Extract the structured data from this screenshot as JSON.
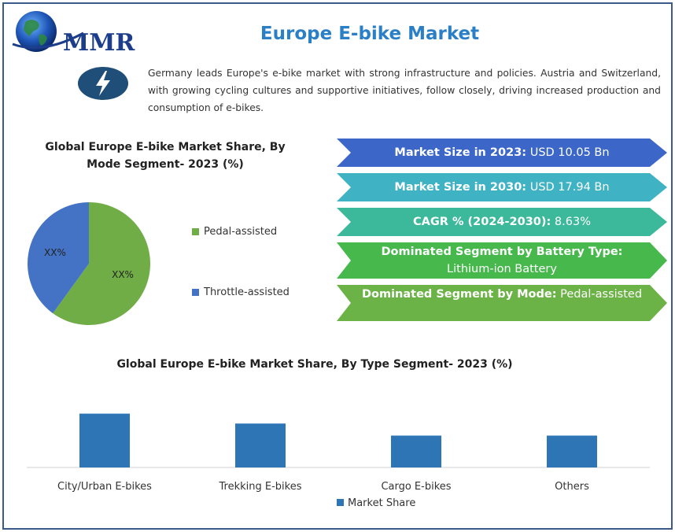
{
  "header": {
    "brand": "MMR",
    "title": "Europe E-bike Market",
    "description": "Germany leads Europe's e-bike market with strong infrastructure and policies. Austria and Switzerland, with growing cycling cultures and supportive initiatives, follow closely, driving increased production and consumption of e-bikes."
  },
  "stats": [
    {
      "label": "Market Size in 2023:",
      "value": " USD 10.05 Bn",
      "color": "#3c67c8"
    },
    {
      "label": "Market Size in 2030:",
      "value": " USD 17.94 Bn",
      "color": "#3fb2c4"
    },
    {
      "label": "CAGR % (2024-2030):",
      "value": " 8.63%",
      "color": "#3cb99a"
    },
    {
      "label": "Dominated Segment by Battery Type:",
      "value": "Lithium-ion Battery",
      "color": "#46b84c"
    },
    {
      "label": "Dominated Segment by Mode:",
      "value": " Pedal-assisted",
      "color": "#6cb347"
    }
  ],
  "chart_data": [
    {
      "type": "pie",
      "title": "Global Europe E-bike Market Share, By Mode Segment- 2023 (%)",
      "categories": [
        "Pedal-assisted",
        "Throttle-assisted"
      ],
      "values": [
        60,
        40
      ],
      "data_labels": [
        "XX%",
        "XX%"
      ],
      "colors": [
        "#70ad47",
        "#4472c4"
      ],
      "legend": "right"
    },
    {
      "type": "bar",
      "title": "Global Europe E-bike Market Share, By Type Segment- 2023 (%)",
      "categories": [
        "City/Urban E-bikes",
        "Trekking E-bikes",
        "Cargo E-bikes",
        "Others"
      ],
      "series": [
        {
          "name": "Market Share",
          "values": [
            76,
            62,
            45,
            45
          ],
          "color": "#2e75b6"
        }
      ],
      "ylim": [
        0,
        100
      ],
      "grid": false,
      "legend": "bottom"
    }
  ]
}
